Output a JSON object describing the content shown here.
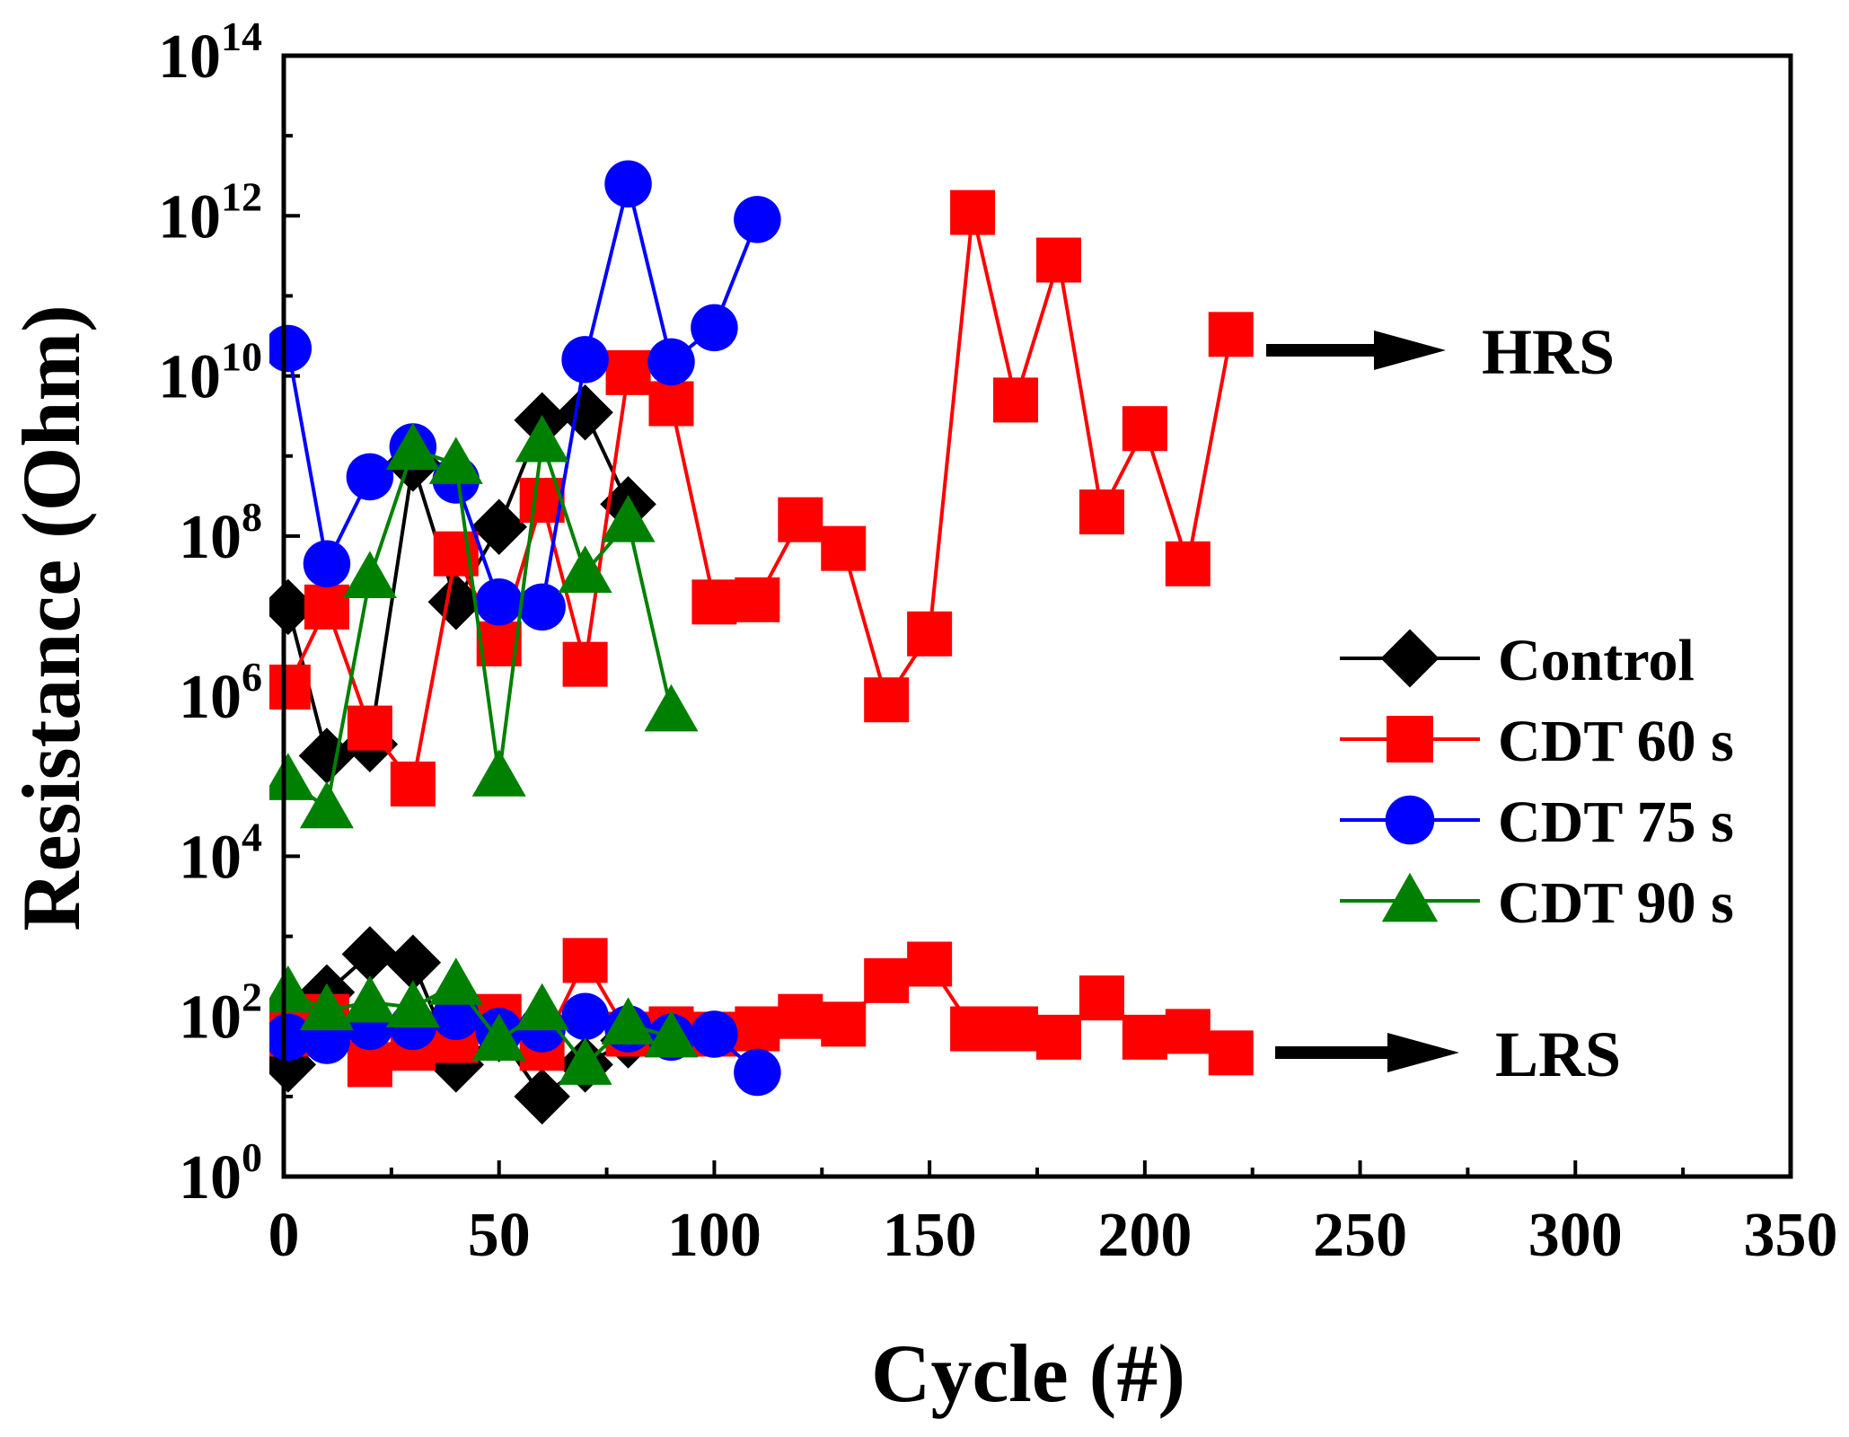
{
  "chart_data": {
    "type": "line",
    "title": "",
    "xlabel": "Cycle (#)",
    "ylabel": "Resistance (Ohm)",
    "xlim": [
      0,
      350
    ],
    "ylim": [
      1,
      100000000000000
    ],
    "yscale": "log",
    "xticks": [
      0,
      50,
      100,
      150,
      200,
      250,
      300,
      350
    ],
    "yticks": [
      {
        "base": "10",
        "exp": "0",
        "value": 1
      },
      {
        "base": "10",
        "exp": "2",
        "value": 100
      },
      {
        "base": "10",
        "exp": "4",
        "value": 10000
      },
      {
        "base": "10",
        "exp": "6",
        "value": 1000000
      },
      {
        "base": "10",
        "exp": "8",
        "value": 100000000
      },
      {
        "base": "10",
        "exp": "10",
        "value": 10000000000
      },
      {
        "base": "10",
        "exp": "12",
        "value": 1000000000000
      },
      {
        "base": "10",
        "exp": "14",
        "value": 100000000000000
      }
    ],
    "legend_position": "right-middle",
    "annotations": [
      {
        "text": "HRS",
        "near": "high-resistance-state"
      },
      {
        "text": "LRS",
        "near": "low-resistance-state"
      }
    ],
    "series": [
      {
        "name": "Control",
        "marker": "diamond",
        "color": "#000000",
        "hrs": [
          [
            1,
            13000000
          ],
          [
            10,
            180000
          ],
          [
            20,
            250000
          ],
          [
            30,
            800000000
          ],
          [
            40,
            15000000
          ],
          [
            50,
            130000000
          ],
          [
            60,
            2800000000
          ],
          [
            70,
            3500000000
          ],
          [
            80,
            250000000
          ]
        ],
        "lrs": [
          [
            1,
            25
          ],
          [
            10,
            200
          ],
          [
            20,
            600
          ],
          [
            30,
            470
          ],
          [
            40,
            25
          ],
          [
            50,
            60
          ],
          [
            60,
            10
          ],
          [
            70,
            25
          ],
          [
            80,
            50
          ]
        ]
      },
      {
        "name": "CDT 60 s",
        "marker": "square",
        "color": "#ff0000",
        "hrs": [
          [
            1,
            1300000
          ],
          [
            10,
            13000000
          ],
          [
            20,
            400000
          ],
          [
            30,
            80000
          ],
          [
            40,
            60000000
          ],
          [
            50,
            4500000
          ],
          [
            60,
            280000000
          ],
          [
            70,
            2500000
          ],
          [
            80,
            11000000000
          ],
          [
            90,
            4500000000
          ],
          [
            100,
            15000000
          ],
          [
            110,
            16000000
          ],
          [
            120,
            160000000
          ],
          [
            130,
            70000000
          ],
          [
            140,
            900000
          ],
          [
            150,
            6000000
          ],
          [
            160,
            1100000000000
          ],
          [
            170,
            5000000000
          ],
          [
            180,
            280000000000
          ],
          [
            190,
            200000000
          ],
          [
            200,
            2200000000
          ],
          [
            210,
            45000000
          ],
          [
            220,
            33000000000
          ]
        ],
        "lrs": [
          [
            1,
            60
          ],
          [
            10,
            100
          ],
          [
            20,
            25
          ],
          [
            30,
            40
          ],
          [
            40,
            50
          ],
          [
            50,
            100
          ],
          [
            60,
            40
          ],
          [
            70,
            500
          ],
          [
            80,
            60
          ],
          [
            90,
            70
          ],
          [
            100,
            60
          ],
          [
            110,
            70
          ],
          [
            120,
            100
          ],
          [
            130,
            80
          ],
          [
            140,
            280
          ],
          [
            150,
            450
          ],
          [
            160,
            70
          ],
          [
            170,
            70
          ],
          [
            180,
            55
          ],
          [
            190,
            170
          ],
          [
            200,
            55
          ],
          [
            210,
            65
          ],
          [
            220,
            35
          ]
        ]
      },
      {
        "name": "CDT 75 s",
        "marker": "circle",
        "color": "#0000ff",
        "hrs": [
          [
            1,
            22000000000
          ],
          [
            10,
            45000000
          ],
          [
            20,
            550000000
          ],
          [
            30,
            1300000000
          ],
          [
            40,
            500000000
          ],
          [
            50,
            15000000
          ],
          [
            60,
            13000000
          ],
          [
            70,
            16000000000
          ],
          [
            80,
            2500000000000
          ],
          [
            90,
            15000000000
          ],
          [
            100,
            40000000000
          ],
          [
            110,
            900000000000
          ]
        ],
        "lrs": [
          [
            1,
            55
          ],
          [
            10,
            50
          ],
          [
            20,
            75
          ],
          [
            30,
            75
          ],
          [
            40,
            100
          ],
          [
            50,
            65
          ],
          [
            60,
            70
          ],
          [
            70,
            100
          ],
          [
            80,
            70
          ],
          [
            90,
            55
          ],
          [
            100,
            60
          ],
          [
            110,
            20
          ]
        ]
      },
      {
        "name": "CDT 90 s",
        "marker": "triangle",
        "color": "#008000",
        "hrs": [
          [
            1,
            90000
          ],
          [
            10,
            40000
          ],
          [
            20,
            30000000
          ],
          [
            30,
            1200000000
          ],
          [
            40,
            800000000
          ],
          [
            50,
            100000
          ],
          [
            60,
            1500000000
          ],
          [
            70,
            35000000
          ],
          [
            80,
            150000000
          ],
          [
            90,
            650000
          ]
        ],
        "lrs": [
          [
            1,
            200
          ],
          [
            10,
            120
          ],
          [
            20,
            150
          ],
          [
            30,
            130
          ],
          [
            40,
            250
          ],
          [
            50,
            50
          ],
          [
            60,
            120
          ],
          [
            70,
            25
          ],
          [
            80,
            80
          ],
          [
            90,
            55
          ]
        ]
      }
    ]
  }
}
